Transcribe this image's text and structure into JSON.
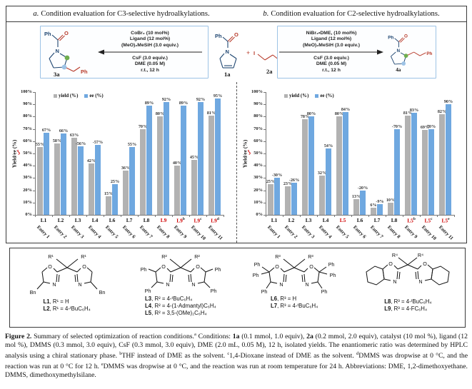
{
  "colors": {
    "bar_yield": "#b2b2b2",
    "bar_ee": "#6fa8e0",
    "highlight_red": "#d00000",
    "scheme_border": "#9dc3e6",
    "ring_navy": "#1f4671",
    "chain_red": "#b73a2a",
    "dot_green": "#6fae4e",
    "dot_blue": "#9dc3e6",
    "axis": "#777777"
  },
  "glyphs": {
    "Ph": "Ph",
    "O": "O",
    "N": "N",
    "I": "I",
    "plus": "+"
  },
  "panels": {
    "a": {
      "prefix": "a.",
      "title": "Condition evaluation for C3-selective hydroalkylations."
    },
    "b": {
      "prefix": "b.",
      "title": "Condition evaluation for C2-selective hydroalkylations."
    }
  },
  "scheme_left": {
    "above": [
      "CoBr₂ (10 mol%)",
      "Ligand (12 mol%)",
      "(MeO)₂MeSiH (3.0 equiv.)"
    ],
    "below": [
      "CsF (3.0 equiv.)",
      "DME (0.05 M)",
      "r.t., 12 h"
    ],
    "product_label": "3a"
  },
  "scheme_center": {
    "substrate1_label": "1a",
    "plus": "+",
    "substrate2_label": "2a"
  },
  "scheme_right": {
    "above": [
      "NiBr₂•DME, (10 mol%)",
      "Ligand (12 mol%)",
      "(MeO)₂MeSiH (3.0 equiv.)"
    ],
    "below": [
      "CsF (3.0 equiv.)",
      "DME (0.05 M)",
      "r.t., 12 h"
    ],
    "product_label": "4a"
  },
  "chart_data": [
    {
      "type": "bar",
      "panel": "a",
      "ylabel_pre": "Yield/",
      "ylabel_mark": "ee",
      "ylabel_post": " (%)",
      "ylim": [
        0,
        100
      ],
      "ytick_step": 10,
      "grid": false,
      "legend_position": "top-left",
      "legend": [
        "yield (%)",
        "ee (%)"
      ],
      "categories": [
        {
          "label": "L1",
          "sup": "",
          "red": false
        },
        {
          "label": "L2",
          "sup": "",
          "red": false
        },
        {
          "label": "L3",
          "sup": "",
          "red": false
        },
        {
          "label": "L4",
          "sup": "",
          "red": false
        },
        {
          "label": "L6",
          "sup": "",
          "red": false
        },
        {
          "label": "L7",
          "sup": "",
          "red": false
        },
        {
          "label": "L8",
          "sup": "",
          "red": false
        },
        {
          "label": "L9",
          "sup": "",
          "red": true
        },
        {
          "label": "L9",
          "sup": "b",
          "red": true
        },
        {
          "label": "L9",
          "sup": "c",
          "red": true
        },
        {
          "label": "L9",
          "sup": "d",
          "red": true
        }
      ],
      "entries": [
        "Entry 1",
        "Entry 2",
        "Entry 3",
        "Entry 4",
        "Entry 5",
        "Entry 6",
        "Entry 7",
        "Entry 8",
        "Entry 9",
        "Entry 10",
        "Entry 11"
      ],
      "series": [
        {
          "name": "yield (%)",
          "color_key": "bar_yield",
          "values": [
            55,
            58,
            63,
            42,
            15,
            36,
            70,
            80,
            40,
            45,
            81
          ]
        },
        {
          "name": "ee (%)",
          "color_key": "bar_ee",
          "values": [
            67,
            66,
            -56,
            -57,
            25,
            55,
            89,
            92,
            89,
            92,
            95
          ]
        }
      ]
    },
    {
      "type": "bar",
      "panel": "b",
      "ylabel_pre": "Yield/",
      "ylabel_mark": "ee",
      "ylabel_post": " (%)",
      "ylim": [
        0,
        100
      ],
      "ytick_step": 10,
      "grid": false,
      "legend_position": "top-left",
      "legend": [
        "yield (%)",
        "ee (%)"
      ],
      "categories": [
        {
          "label": "L1",
          "sup": "",
          "red": false
        },
        {
          "label": "L2",
          "sup": "",
          "red": false
        },
        {
          "label": "L3",
          "sup": "",
          "red": false
        },
        {
          "label": "L4",
          "sup": "",
          "red": false
        },
        {
          "label": "L5",
          "sup": "",
          "red": true
        },
        {
          "label": "L6",
          "sup": "",
          "red": false
        },
        {
          "label": "L7",
          "sup": "",
          "red": false
        },
        {
          "label": "L8",
          "sup": "",
          "red": false
        },
        {
          "label": "L5",
          "sup": "b",
          "red": true
        },
        {
          "label": "L5",
          "sup": "c",
          "red": true
        },
        {
          "label": "L5",
          "sup": "e",
          "red": true
        }
      ],
      "entries": [
        "Entry 1",
        "Entry 2",
        "Entry 3",
        "Entry 4",
        "Entry 5",
        "Entry 6",
        "Entry 7",
        "Entry 8",
        "Entry 9",
        "Entry 10",
        "Entry 11"
      ],
      "series": [
        {
          "name": "yield (%)",
          "color_key": "bar_yield",
          "values": [
            25,
            23,
            78,
            32,
            80,
            13,
            6,
            10,
            81,
            69,
            82
          ]
        },
        {
          "name": "ee (%)",
          "color_key": "bar_ee",
          "values": [
            -30,
            -26,
            80,
            54,
            84,
            -20,
            -9,
            -70,
            83,
            70,
            90
          ]
        }
      ]
    }
  ],
  "ligands": {
    "box1": {
      "r": "R¹",
      "sub": "Bn",
      "lines": [
        {
          "name": "L1",
          "rest": ", R¹ = H"
        },
        {
          "name": "L2",
          "rest": ", R¹ = 4-ᵗBuC₆H₄"
        }
      ]
    },
    "box2": {
      "r": "R²",
      "sub": "Ph",
      "lines": [
        {
          "name": "L3",
          "rest": ", R² = 4-ᵗBuC₆H₄"
        },
        {
          "name": "L4",
          "rest": ", R² = 4-(1-Admantyl)C₆H₄"
        },
        {
          "name": "L5",
          "rest": ", R² = 3,5-(OMe)₂C₆H₄"
        }
      ]
    },
    "box3": {
      "r": "R³",
      "sub": "Ph",
      "lines": [
        {
          "name": "L6",
          "rest": ", R³ = H"
        },
        {
          "name": "L7",
          "rest": ", R³ = 4-ᵗBuC₆H₄"
        }
      ]
    },
    "box4": {
      "r": "R⁴",
      "lines": [
        {
          "name": "L8",
          "rest": ", R³ = 4-ᵗBuC₆H₄"
        },
        {
          "name": "L9",
          "rest": ", R³ = 4-FC₆H₄"
        }
      ]
    }
  },
  "caption_runs": [
    {
      "t": "Figure 2.",
      "b": true
    },
    {
      "t": " Summary of selected optimization of reaction conditions."
    },
    {
      "t": "a",
      "sup": true
    },
    {
      "t": " Conditions: "
    },
    {
      "t": "1a",
      "b": true
    },
    {
      "t": " (0.1 mmol, 1.0 equiv), "
    },
    {
      "t": "2a",
      "b": true
    },
    {
      "t": " (0.2 mmol, 2.0 equiv), catalyst (10 mol %), ligand (12 mol %), DMMS (0.3 mmol, 3.0 equiv), CsF (0.3 mmol, 3.0 equiv), DME (2.0 mL, 0.05 M), 12 h, isolated yields. The enantiomeric ratio was determined by HPLC analysis using a chiral stationary phase. "
    },
    {
      "t": "b",
      "sup": true
    },
    {
      "t": "THF instead of DME as the solvent. "
    },
    {
      "t": "c",
      "sup": true
    },
    {
      "t": "1,4-Dioxane instead of DME as the solvent. "
    },
    {
      "t": "d",
      "sup": true
    },
    {
      "t": "DMMS was dropwise at 0 °C, and the reaction was run at 0 °C for 12 h. "
    },
    {
      "t": "e",
      "sup": true
    },
    {
      "t": "DMMS was dropwise at 0 °C, and the reaction was run at room temperature for 24 h. Abbreviations: DME, 1,2-dimethoxyethane. DMMS, dimethoxymethylsilane."
    }
  ]
}
